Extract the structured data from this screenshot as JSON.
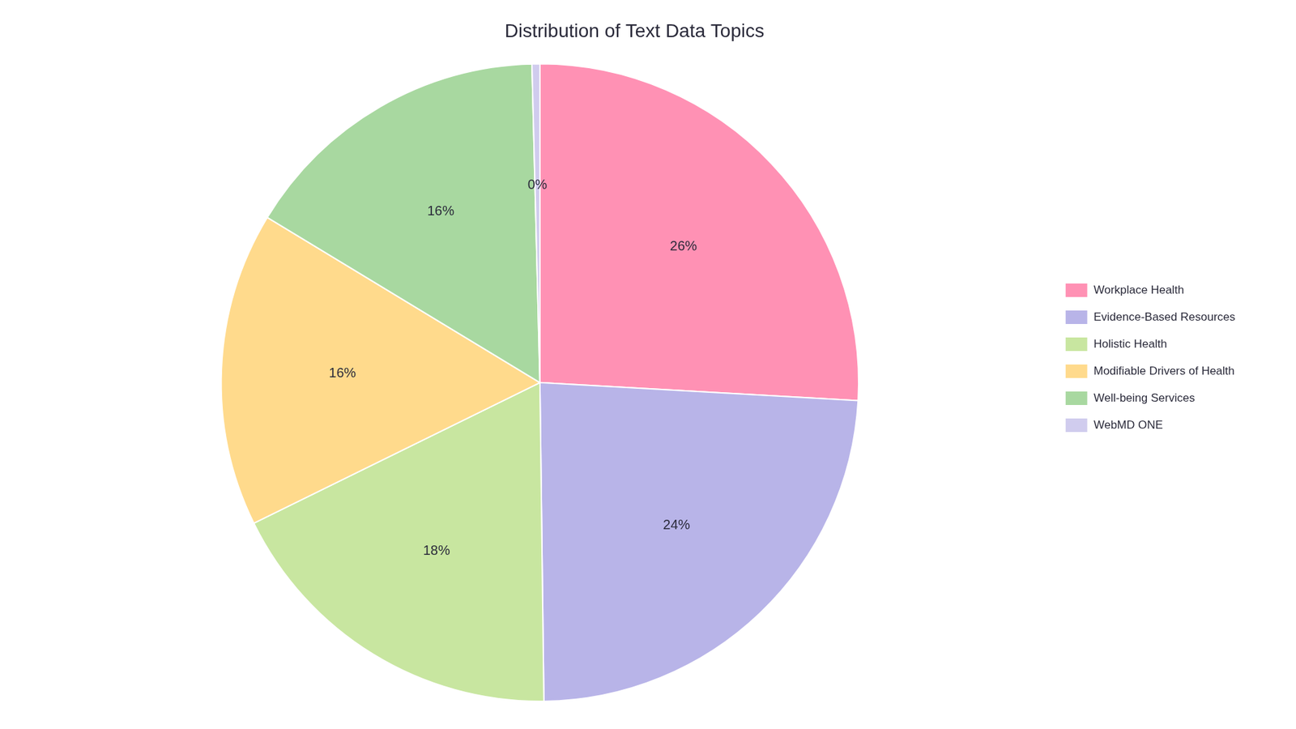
{
  "chart_data": {
    "type": "pie",
    "title": "Distribution of Text Data Topics",
    "categories": [
      "Workplace Health",
      "Evidence-Based Resources",
      "Holistic Health",
      "Modifiable Drivers of Health",
      "Well-being Services",
      "WebMD ONE"
    ],
    "values": [
      26,
      24,
      18,
      16,
      16,
      0.4
    ],
    "value_labels": [
      "26%",
      "24%",
      "18%",
      "16%",
      "16%",
      "0%"
    ],
    "colors": [
      "#FF91B4",
      "#B8B4E8",
      "#C8E6A0",
      "#FFDA8C",
      "#A8D8A0",
      "#D0CCEE"
    ],
    "data_labels": true,
    "legend": "right"
  }
}
